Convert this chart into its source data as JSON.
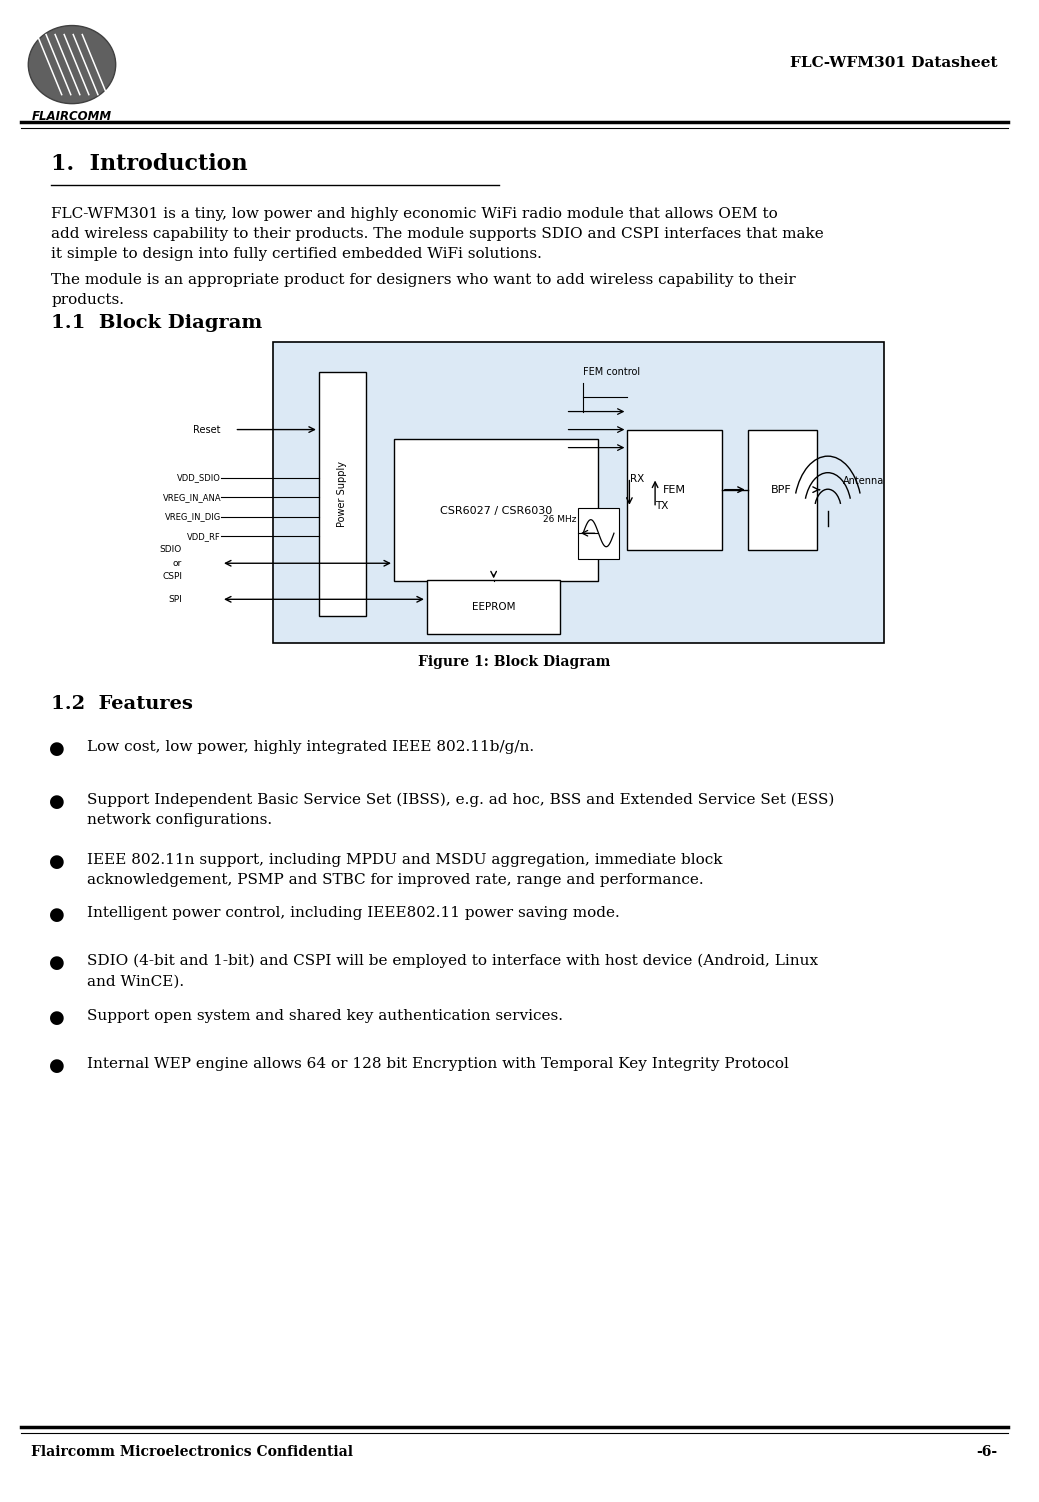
{
  "page_width": 10.39,
  "page_height": 15.02,
  "bg_color": "#ffffff",
  "header": {
    "logo_text": "FLAIRCOMM",
    "title_right": "FLC-WFM301 Datasheet"
  },
  "footer": {
    "left_text": "Flaircomm Microelectronics Confidential",
    "right_text": "-6-"
  },
  "section1_title": "1.  Introduction",
  "section1_body1": "FLC-WFM301 is a tiny, low power and highly economic WiFi radio module that allows OEM to\nadd wireless capability to their products. The module supports SDIO and CSPI interfaces that make\nit simple to design into fully certified embedded WiFi solutions.",
  "section1_body2": "The module is an appropriate product for designers who want to add wireless capability to their\nproducts.",
  "section11_title": "1.1  Block Diagram",
  "figure_caption": "Figure 1: Block Diagram",
  "section12_title": "1.2  Features",
  "features": [
    "Low cost, low power, highly integrated IEEE 802.11b/g/n.",
    "Support Independent Basic Service Set (IBSS), e.g. ad hoc, BSS and Extended Service Set (ESS)\nnetwork configurations.",
    "IEEE 802.11n support, including MPDU and MSDU aggregation, immediate block\nacknowledgement, PSMP and STBC for improved rate, range and performance.",
    "Intelligent power control, including IEEE802.11 power saving mode.",
    "SDIO (4-bit and 1-bit) and CSPI will be employed to interface with host device (Android, Linux\nand WinCE).",
    "Support open system and shared key authentication services.",
    "Internal WEP engine allows 64 or 128 bit Encryption with Temporal Key Integrity Protocol"
  ]
}
